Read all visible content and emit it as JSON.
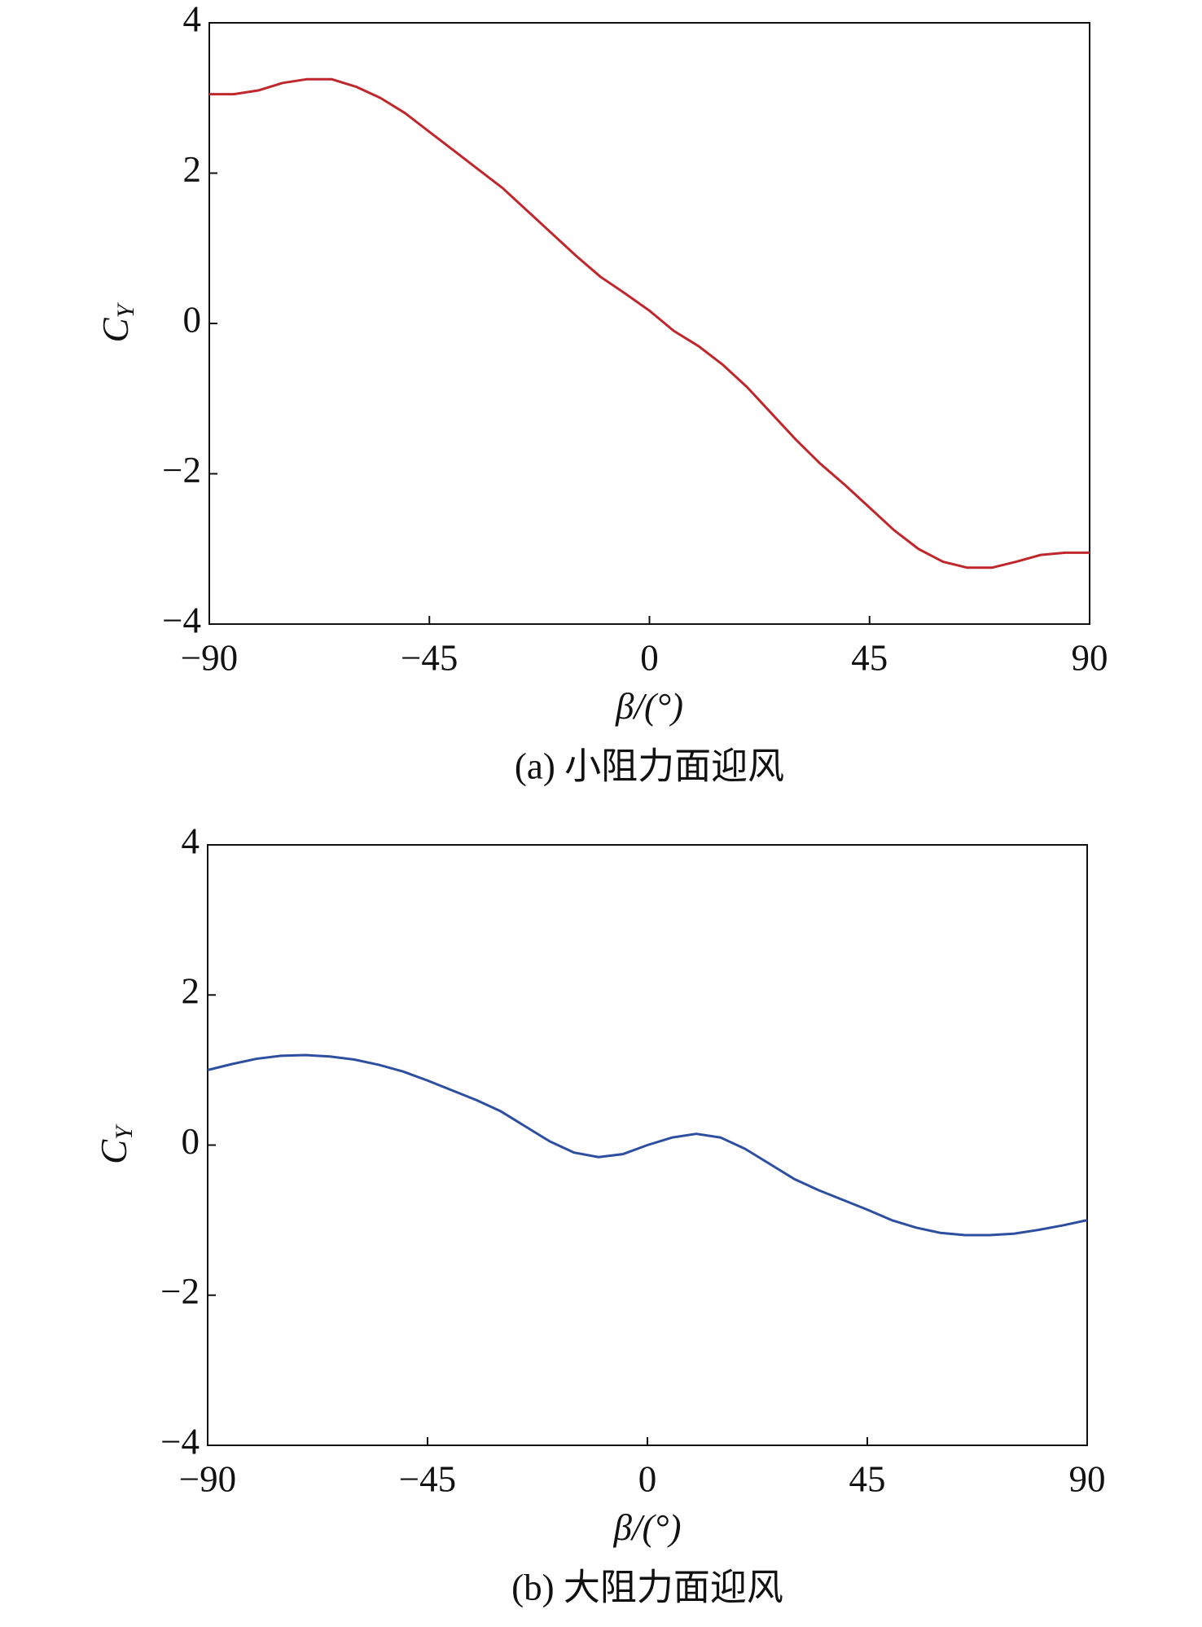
{
  "chart_data": [
    {
      "type": "line",
      "caption": "(a) 小阻力面迎风",
      "xlabel": "β/(°)",
      "ylabel": "C",
      "ylabel_subscript": "Y",
      "x": [
        -90,
        -85,
        -80,
        -75,
        -70,
        -65,
        -60,
        -55,
        -50,
        -45,
        -40,
        -35,
        -30,
        -25,
        -20,
        -15,
        -10,
        -5,
        0,
        5,
        10,
        15,
        20,
        25,
        30,
        35,
        40,
        45,
        50,
        55,
        60,
        65,
        70,
        75,
        80,
        85,
        90
      ],
      "series": [
        {
          "color": "#c0272d",
          "values": [
            3.05,
            3.05,
            3.1,
            3.2,
            3.25,
            3.25,
            3.15,
            3.0,
            2.8,
            2.55,
            2.3,
            2.05,
            1.8,
            1.5,
            1.2,
            0.9,
            0.62,
            0.4,
            0.17,
            -0.1,
            -0.3,
            -0.55,
            -0.85,
            -1.2,
            -1.55,
            -1.87,
            -2.15,
            -2.45,
            -2.75,
            -3.0,
            -3.17,
            -3.25,
            -3.25,
            -3.17,
            -3.08,
            -3.05,
            -3.05
          ]
        }
      ],
      "xlim": [
        -90,
        90
      ],
      "xticks": [
        {
          "value": -90,
          "label": "−90"
        },
        {
          "value": -45,
          "label": "−45"
        },
        0,
        45,
        90
      ],
      "ylim": [
        -4,
        4
      ],
      "yticks": [
        {
          "value": -4,
          "label": "−4"
        },
        {
          "value": -2,
          "label": "−2"
        },
        0,
        2,
        4
      ]
    },
    {
      "type": "line",
      "caption": "(b) 大阻力面迎风",
      "xlabel": "β/(°)",
      "ylabel": "C",
      "ylabel_subscript": "Y",
      "x": [
        -90,
        -85,
        -80,
        -75,
        -70,
        -65,
        -60,
        -55,
        -50,
        -45,
        -40,
        -35,
        -30,
        -25,
        -20,
        -15,
        -10,
        -5,
        0,
        5,
        10,
        15,
        20,
        25,
        30,
        35,
        40,
        45,
        50,
        55,
        60,
        65,
        70,
        75,
        80,
        85,
        90
      ],
      "series": [
        {
          "color": "#2e4fa0",
          "values": [
            1.0,
            1.08,
            1.15,
            1.19,
            1.2,
            1.18,
            1.14,
            1.07,
            0.98,
            0.86,
            0.73,
            0.6,
            0.45,
            0.25,
            0.05,
            -0.1,
            -0.16,
            -0.12,
            0.0,
            0.1,
            0.15,
            0.1,
            -0.05,
            -0.25,
            -0.45,
            -0.6,
            -0.73,
            -0.86,
            -1.0,
            -1.1,
            -1.17,
            -1.2,
            -1.2,
            -1.18,
            -1.13,
            -1.07,
            -1.0
          ]
        }
      ],
      "xlim": [
        -90,
        90
      ],
      "xticks": [
        {
          "value": -90,
          "label": "−90"
        },
        {
          "value": -45,
          "label": "−45"
        },
        0,
        45,
        90
      ],
      "ylim": [
        -4,
        4
      ],
      "yticks": [
        {
          "value": -4,
          "label": "−4"
        },
        {
          "value": -2,
          "label": "−2"
        },
        0,
        2,
        4
      ]
    }
  ]
}
